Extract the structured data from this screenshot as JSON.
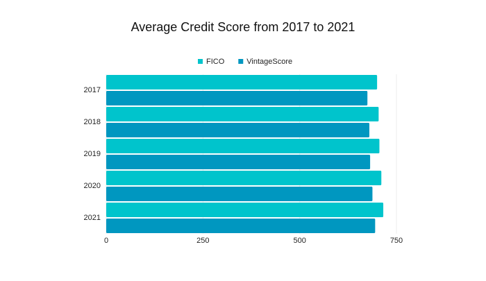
{
  "chart_data": {
    "type": "hbar",
    "title": "Average Credit Score from 2017 to 2021",
    "categories": [
      "2017",
      "2018",
      "2019",
      "2020",
      "2021"
    ],
    "series": [
      {
        "name": "FICO",
        "color": "#00c4cc",
        "values": [
          700,
          704,
          706,
          711,
          716
        ]
      },
      {
        "name": "VintageScore",
        "color": "#0097c0",
        "values": [
          675,
          680,
          682,
          688,
          695
        ]
      }
    ],
    "xlim": [
      0,
      750
    ],
    "xticks": [
      0,
      250,
      500,
      750
    ],
    "grid": true,
    "legend": "top"
  }
}
